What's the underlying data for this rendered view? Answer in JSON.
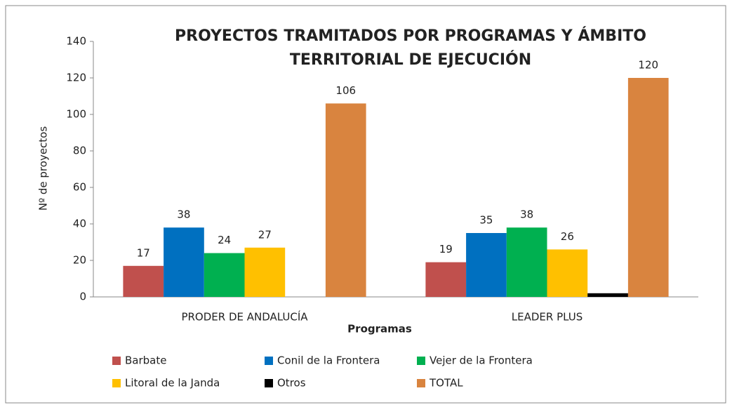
{
  "chart_data": {
    "type": "bar",
    "title_lines": [
      "PROYECTOS TRAMITADOS POR PROGRAMAS Y ÁMBITO",
      "TERRITORIAL DE EJECUCIÓN"
    ],
    "x_label": "Programas",
    "y_label": "Nº de proyectos",
    "categories": [
      "PRODER DE ANDALUCÍA",
      "LEADER PLUS"
    ],
    "series": [
      {
        "name": "Barbate",
        "color": "#c0504d",
        "values": [
          17,
          19
        ],
        "data_labels": true
      },
      {
        "name": "Conil de la Frontera",
        "color": "#0070c0",
        "values": [
          38,
          35
        ],
        "data_labels": true
      },
      {
        "name": "Vejer de la Frontera",
        "color": "#00b050",
        "values": [
          24,
          38
        ],
        "data_labels": true
      },
      {
        "name": "Litoral de la Janda",
        "color": "#ffc000",
        "values": [
          27,
          26
        ],
        "data_labels": true
      },
      {
        "name": "Otros",
        "color": "#000000",
        "values": [
          null,
          2
        ],
        "data_labels": false
      },
      {
        "name": "TOTAL",
        "color": "#d9843f",
        "values": [
          106,
          120
        ],
        "data_labels": true
      }
    ],
    "ylim": [
      0,
      140
    ],
    "yticks": [
      0,
      20,
      40,
      60,
      80,
      100,
      120,
      140
    ],
    "grid": false
  }
}
